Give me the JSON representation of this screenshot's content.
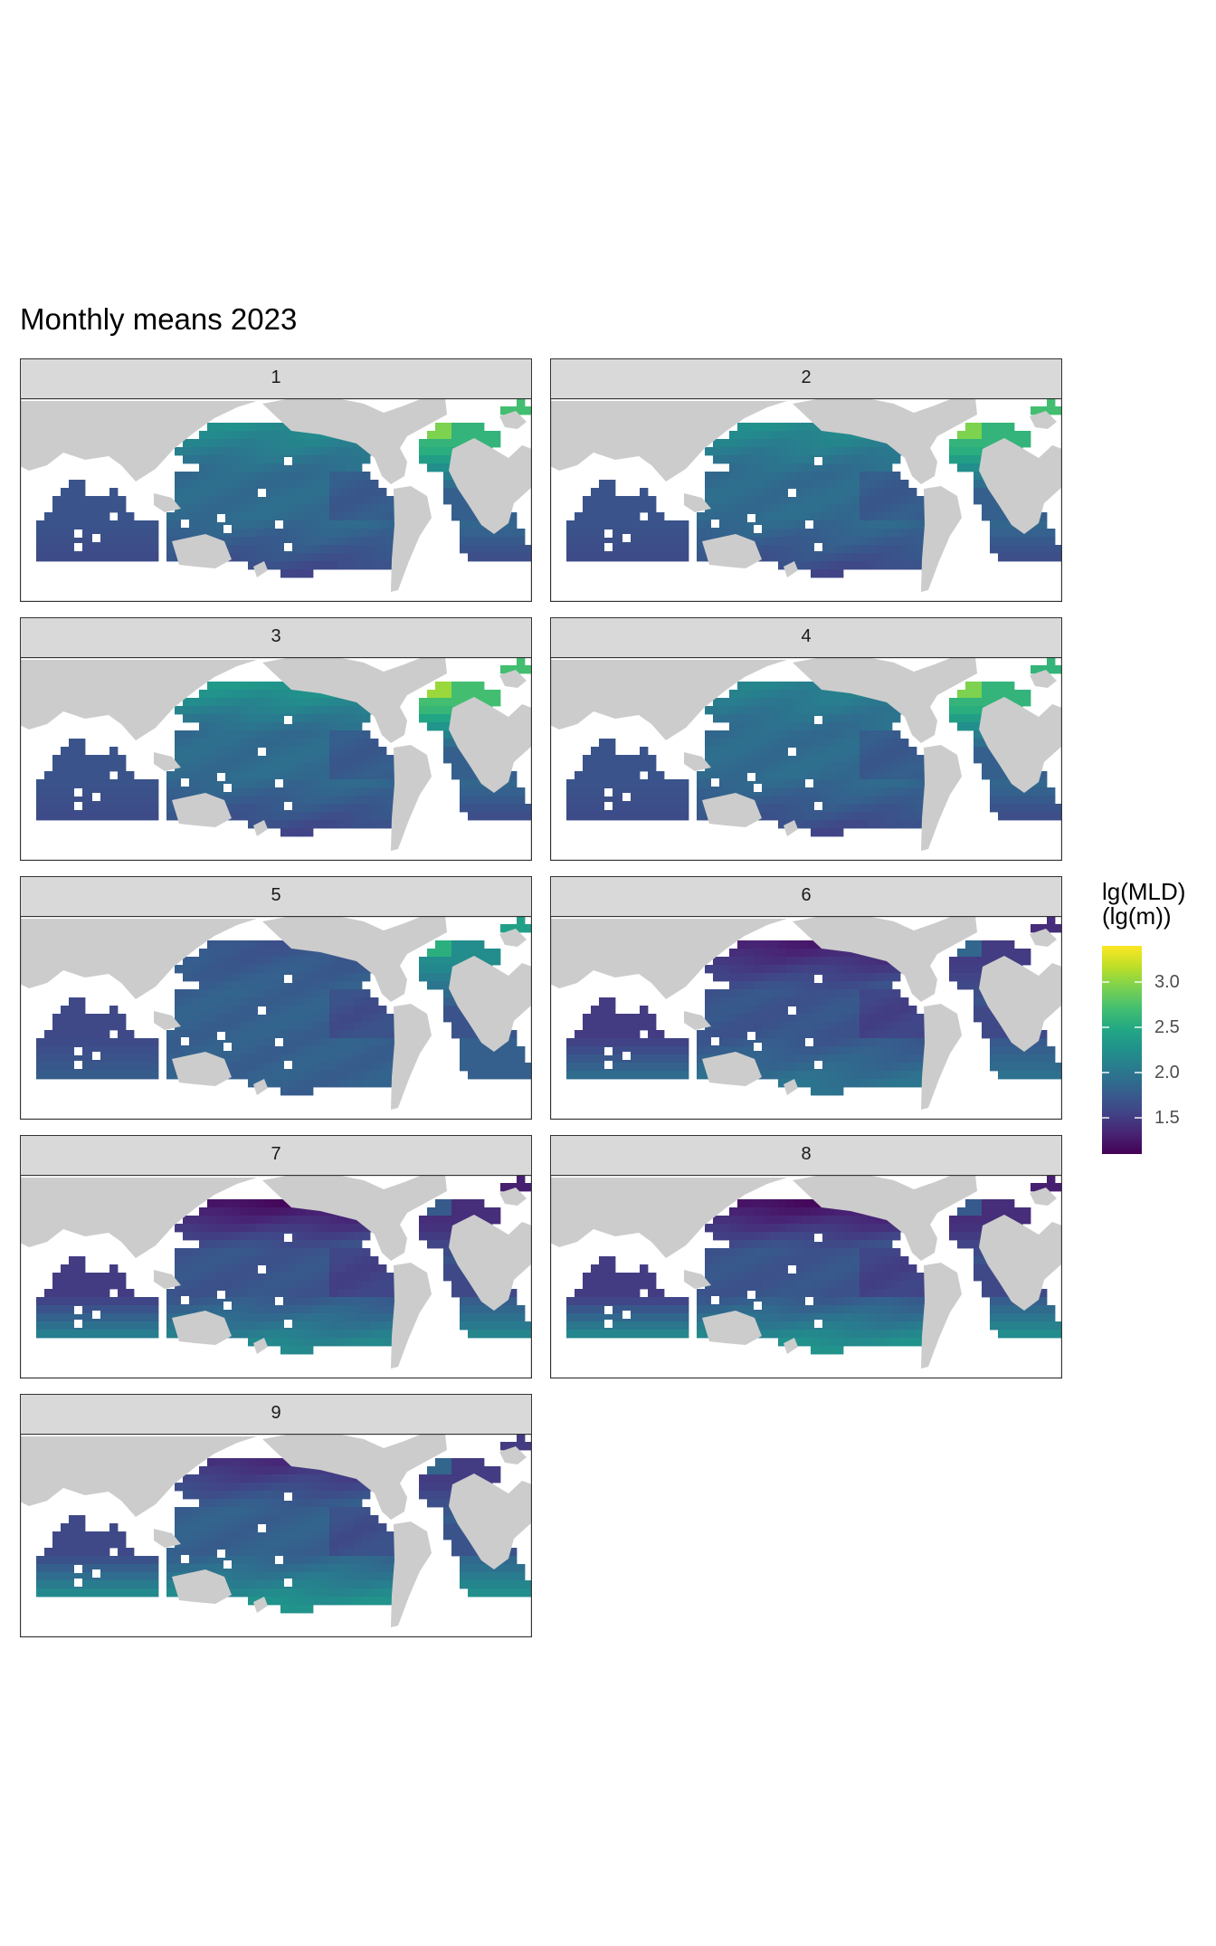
{
  "title": "Monthly means 2023",
  "chart_data": {
    "type": "heatmap",
    "title": "Monthly means 2023",
    "facet_variable": "month",
    "facets": [
      {
        "label": "1",
        "north_atlantic_level": 2.6,
        "north_pacific_level": 2.2,
        "tropical_level": 1.9,
        "southern_level": 1.6,
        "arctic_level": 2.7
      },
      {
        "label": "2",
        "north_atlantic_level": 2.6,
        "north_pacific_level": 2.2,
        "tropical_level": 1.9,
        "southern_level": 1.6,
        "arctic_level": 2.7
      },
      {
        "label": "3",
        "north_atlantic_level": 2.7,
        "north_pacific_level": 2.3,
        "tropical_level": 1.9,
        "southern_level": 1.6,
        "arctic_level": 2.7
      },
      {
        "label": "4",
        "north_atlantic_level": 2.6,
        "north_pacific_level": 2.1,
        "tropical_level": 1.9,
        "southern_level": 1.6,
        "arctic_level": 2.6
      },
      {
        "label": "5",
        "north_atlantic_level": 2.2,
        "north_pacific_level": 1.7,
        "tropical_level": 1.8,
        "southern_level": 1.8,
        "arctic_level": 2.4
      },
      {
        "label": "6",
        "north_atlantic_level": 1.5,
        "north_pacific_level": 1.3,
        "tropical_level": 1.7,
        "southern_level": 2.0,
        "arctic_level": 1.4
      },
      {
        "label": "7",
        "north_atlantic_level": 1.4,
        "north_pacific_level": 1.2,
        "tropical_level": 1.7,
        "southern_level": 2.2,
        "arctic_level": 1.3
      },
      {
        "label": "8",
        "north_atlantic_level": 1.4,
        "north_pacific_level": 1.2,
        "tropical_level": 1.7,
        "southern_level": 2.3,
        "arctic_level": 1.3
      },
      {
        "label": "9",
        "north_atlantic_level": 1.5,
        "north_pacific_level": 1.4,
        "tropical_level": 1.8,
        "southern_level": 2.3,
        "arctic_level": 1.5
      }
    ],
    "legend": {
      "title_line1": "lg(MLD)",
      "title_line2": "(lg(m))",
      "scale": "viridis",
      "range": [
        1.1,
        3.4
      ],
      "ticks": [
        "1.5",
        "2.0",
        "2.5",
        "3.0"
      ],
      "placement": "right"
    },
    "colors": {
      "land": "#cccccc",
      "ocean_missing": "#ffffff",
      "strip": "#d9d9d9",
      "border": "#333333"
    }
  }
}
